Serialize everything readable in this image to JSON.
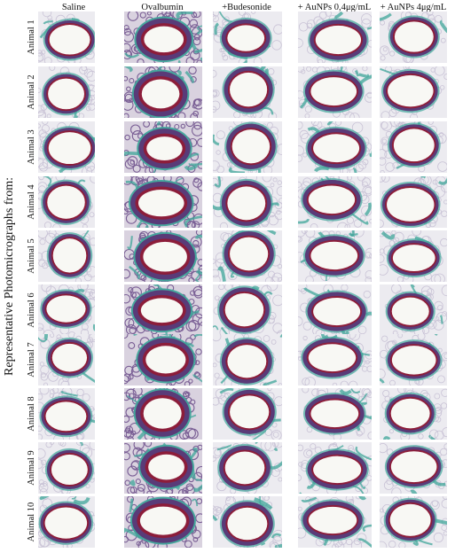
{
  "side_title": "Representative Photomicrographs  from:",
  "columns": [
    {
      "label": "Saline",
      "stain": "mild"
    },
    {
      "label": "Ovalbumin",
      "stain": "heavy"
    },
    {
      "label": "+Budesonide",
      "stain": "moderate"
    },
    {
      "label": "+ AuNPs 0,4μg/mL",
      "stain": "moderate"
    },
    {
      "label": "+ AuNPs 4μg/mL",
      "stain": "mild"
    }
  ],
  "rows": [
    {
      "label": "Animal  1"
    },
    {
      "label": "Animal  2"
    },
    {
      "label": "Animal  3"
    },
    {
      "label": "Animal  4"
    },
    {
      "label": "Animal  5"
    },
    {
      "label": "Animal  6"
    },
    {
      "label": "Animal  7"
    },
    {
      "label": "Animal  8"
    },
    {
      "label": "Animal  9"
    },
    {
      "label": "Animal  10"
    }
  ],
  "colors": {
    "background": "#ffffff",
    "collagen_green": "#3fa59a",
    "mucosa_purple": "#5a3b78",
    "epithelium_red": "#8c1d3a",
    "lumen": "#f8f8f4",
    "alveoli": "#c9c3d6"
  }
}
